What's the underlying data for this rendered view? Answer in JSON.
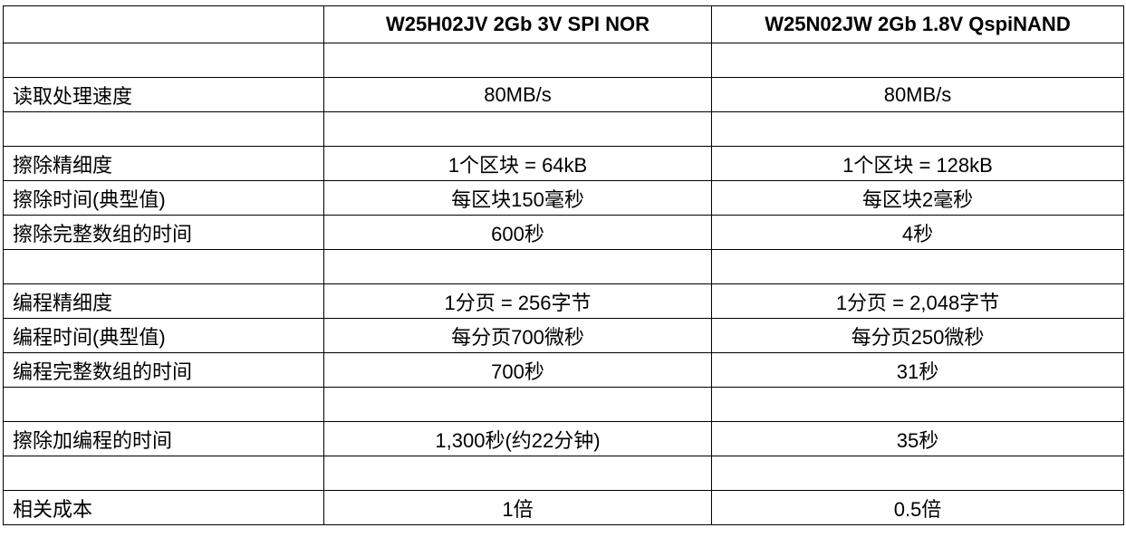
{
  "table": {
    "columns": [
      "W25H02JV 2Gb 3V SPI NOR",
      "W25N02JW 2Gb 1.8V QspiNAND"
    ],
    "rows": [
      null,
      [
        "读取处理速度",
        "80MB/s",
        "80MB/s"
      ],
      null,
      [
        "擦除精细度",
        "1个区块 = 64kB",
        "1个区块 = 128kB"
      ],
      [
        "擦除时间(典型值)",
        "每区块150毫秒",
        "每区块2毫秒"
      ],
      [
        "擦除完整数组的时间",
        "600秒",
        "4秒"
      ],
      null,
      [
        "编程精细度",
        "1分页 = 256字节",
        "1分页 = 2,048字节"
      ],
      [
        "编程时间(典型值)",
        "每分页700微秒",
        "每分页250微秒"
      ],
      [
        "编程完整数组的时间",
        "700秒",
        "31秒"
      ],
      null,
      [
        "擦除加编程的时间",
        "1,300秒(约22分钟)",
        "35秒"
      ],
      null,
      [
        "相关成本",
        "1倍",
        "0.5倍"
      ]
    ]
  }
}
